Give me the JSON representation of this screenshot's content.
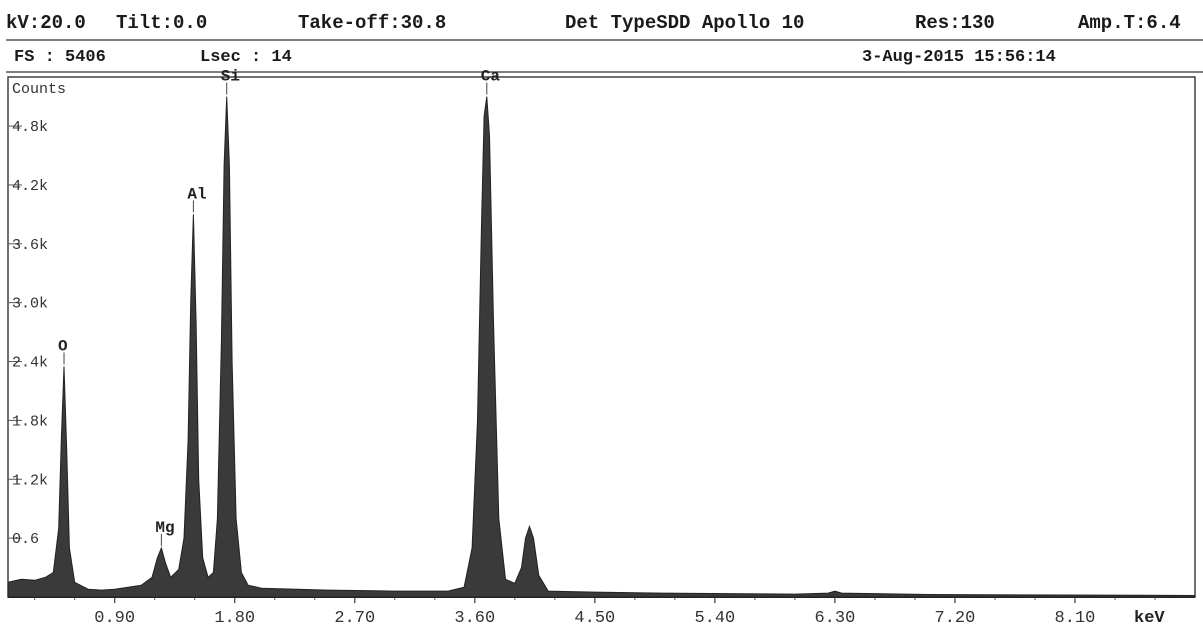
{
  "header": {
    "kv": "kV:20.0",
    "tilt": "Tilt:0.0",
    "takeoff": "Take-off:30.8",
    "detector": "Det TypeSDD Apollo 10",
    "res": "Res:130",
    "amp": "Amp.T:6.4",
    "fs": "FS : 5406",
    "lsec": "Lsec : 14",
    "datetime": "3-Aug-2015 15:56:14"
  },
  "chart_data": {
    "type": "line",
    "ylabel": "Counts",
    "xunit": "keV",
    "xlim": [
      0.1,
      9.0
    ],
    "ylim": [
      0,
      5.3
    ],
    "y_ticks": [
      "0.6",
      "1.2k",
      "1.8k",
      "2.4k",
      "3.0k",
      "3.6k",
      "4.2k",
      "4.8k"
    ],
    "x_ticks": [
      "0.90",
      "1.80",
      "2.70",
      "3.60",
      "4.50",
      "5.40",
      "6.30",
      "7.20",
      "8.10"
    ],
    "peaks": [
      {
        "element": "O",
        "x": 0.52,
        "y": 2.35
      },
      {
        "element": "Mg",
        "x": 1.25,
        "y": 0.5
      },
      {
        "element": "Al",
        "x": 1.49,
        "y": 3.9
      },
      {
        "element": "Si",
        "x": 1.74,
        "y": 5.1
      },
      {
        "element": "Ca",
        "x": 3.69,
        "y": 5.1
      },
      {
        "element": "",
        "x": 4.01,
        "y": 0.72
      }
    ],
    "series": [
      {
        "values": [
          [
            0.1,
            0.15
          ],
          [
            0.2,
            0.18
          ],
          [
            0.3,
            0.17
          ],
          [
            0.38,
            0.2
          ],
          [
            0.44,
            0.25
          ],
          [
            0.48,
            0.7
          ],
          [
            0.5,
            1.6
          ],
          [
            0.52,
            2.35
          ],
          [
            0.54,
            1.5
          ],
          [
            0.56,
            0.5
          ],
          [
            0.6,
            0.15
          ],
          [
            0.7,
            0.08
          ],
          [
            0.8,
            0.07
          ],
          [
            0.9,
            0.08
          ],
          [
            1.0,
            0.1
          ],
          [
            1.1,
            0.12
          ],
          [
            1.18,
            0.2
          ],
          [
            1.22,
            0.4
          ],
          [
            1.25,
            0.5
          ],
          [
            1.28,
            0.35
          ],
          [
            1.32,
            0.2
          ],
          [
            1.38,
            0.28
          ],
          [
            1.42,
            0.6
          ],
          [
            1.45,
            1.6
          ],
          [
            1.47,
            3.0
          ],
          [
            1.49,
            3.9
          ],
          [
            1.51,
            2.8
          ],
          [
            1.53,
            1.2
          ],
          [
            1.56,
            0.4
          ],
          [
            1.6,
            0.2
          ],
          [
            1.64,
            0.25
          ],
          [
            1.67,
            0.8
          ],
          [
            1.7,
            2.6
          ],
          [
            1.72,
            4.4
          ],
          [
            1.74,
            5.1
          ],
          [
            1.76,
            4.4
          ],
          [
            1.78,
            2.4
          ],
          [
            1.81,
            0.8
          ],
          [
            1.85,
            0.25
          ],
          [
            1.9,
            0.12
          ],
          [
            2.0,
            0.09
          ],
          [
            2.5,
            0.07
          ],
          [
            3.0,
            0.06
          ],
          [
            3.4,
            0.06
          ],
          [
            3.52,
            0.1
          ],
          [
            3.58,
            0.5
          ],
          [
            3.62,
            1.8
          ],
          [
            3.65,
            3.8
          ],
          [
            3.67,
            4.9
          ],
          [
            3.69,
            5.1
          ],
          [
            3.71,
            4.7
          ],
          [
            3.74,
            2.8
          ],
          [
            3.78,
            0.8
          ],
          [
            3.83,
            0.18
          ],
          [
            3.9,
            0.14
          ],
          [
            3.95,
            0.3
          ],
          [
            3.98,
            0.6
          ],
          [
            4.01,
            0.72
          ],
          [
            4.04,
            0.6
          ],
          [
            4.08,
            0.22
          ],
          [
            4.15,
            0.06
          ],
          [
            4.5,
            0.05
          ],
          [
            5.0,
            0.04
          ],
          [
            5.5,
            0.035
          ],
          [
            6.0,
            0.03
          ],
          [
            6.25,
            0.04
          ],
          [
            6.3,
            0.06
          ],
          [
            6.35,
            0.04
          ],
          [
            7.0,
            0.025
          ],
          [
            8.0,
            0.02
          ],
          [
            9.0,
            0.015
          ]
        ]
      }
    ],
    "grid": true
  }
}
